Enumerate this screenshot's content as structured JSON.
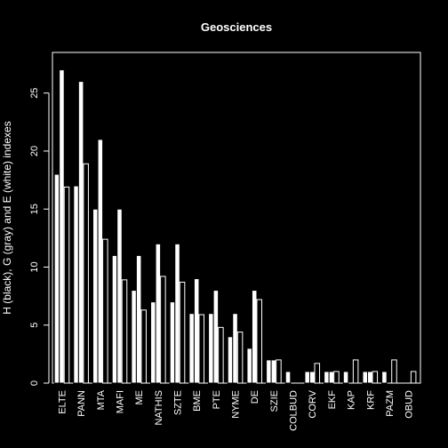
{
  "colors": {
    "background": "#000000",
    "foreground": "#ffffff",
    "black_fill": "#000000",
    "gray_fill": "#ffffff",
    "white_fill": "#000000"
  },
  "chart_data": {
    "type": "bar",
    "title": "Geosciences",
    "ylabel": "H (black), G (gray) and E (white) indexes",
    "xlabel": "",
    "ylim": [
      0,
      28.5
    ],
    "yticks": [
      0,
      5,
      10,
      15,
      20,
      25
    ],
    "categories": [
      "ELTE",
      "PANN",
      "MTA",
      "MAFI",
      "ME",
      "NATHIS",
      "SZTE",
      "BME",
      "PTE",
      "NYME",
      "DE",
      "SZIE",
      "COLBUD",
      "CORV",
      "EKF",
      "KAP",
      "KRF",
      "PAZM",
      "OBUD"
    ],
    "series": [
      {
        "name": "H",
        "values": [
          18,
          17,
          15,
          11,
          8,
          7,
          7,
          6,
          6,
          4,
          3,
          2,
          1,
          1,
          1,
          1,
          1,
          1,
          0
        ]
      },
      {
        "name": "G",
        "values": [
          27,
          26,
          21,
          15,
          11,
          12,
          12,
          9,
          8,
          6,
          8,
          2,
          0,
          1,
          1,
          0,
          1,
          0,
          0
        ]
      },
      {
        "name": "E",
        "values": [
          16.9,
          18.9,
          12.4,
          8.9,
          6.3,
          9.2,
          8.7,
          5.9,
          4.8,
          4.4,
          7.2,
          2,
          0,
          1.7,
          1,
          2,
          1,
          2,
          1
        ]
      }
    ],
    "grid": false,
    "legend": "none"
  }
}
